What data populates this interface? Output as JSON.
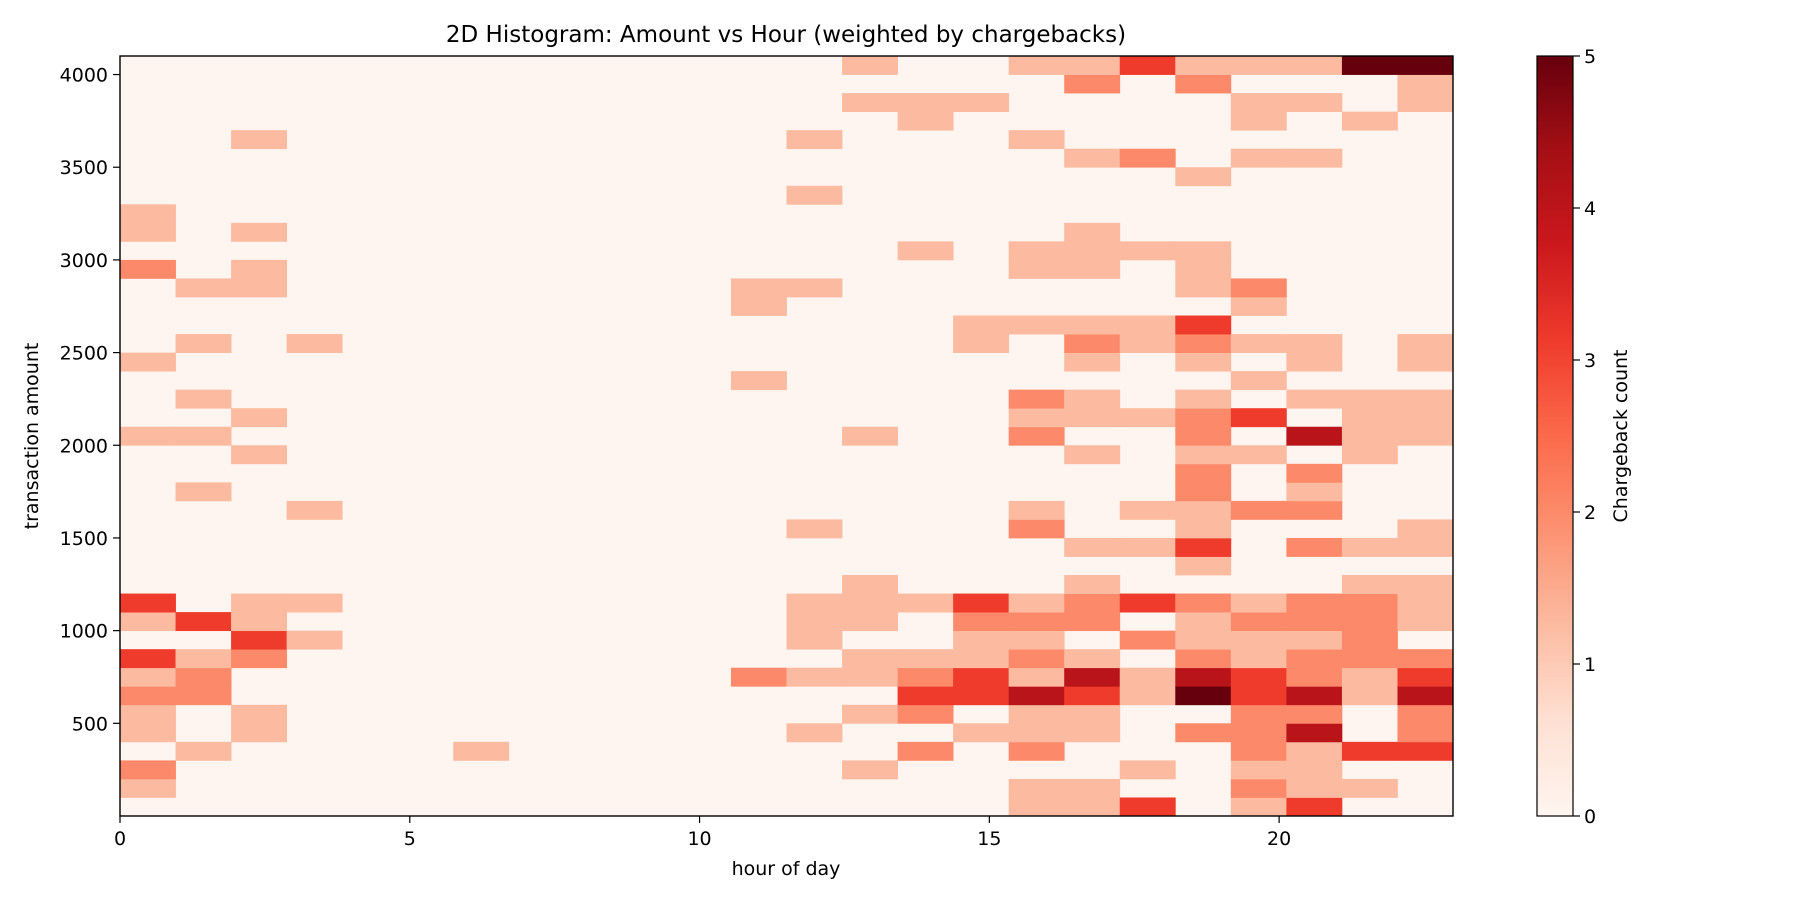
{
  "chart_data": {
    "type": "heatmap",
    "title": "2D Histogram: Amount vs Hour (weighted by chargebacks)",
    "xlabel": "hour of day",
    "ylabel": "transaction amount",
    "colorbar_label": "Chargeback count",
    "colormap": "Reds",
    "value_range": [
      0,
      5
    ],
    "x_range": [
      0,
      23
    ],
    "y_range": [
      0,
      4100
    ],
    "n_x_bins": 24,
    "n_y_bins": 41,
    "x_ticks": [
      0,
      5,
      10,
      15,
      20
    ],
    "y_ticks": [
      500,
      1000,
      1500,
      2000,
      2500,
      3000,
      3500,
      4000
    ],
    "colorbar_ticks": [
      0,
      1,
      2,
      3,
      4,
      5
    ],
    "grid": false,
    "cells": [
      [
        0,
        1,
        1
      ],
      [
        0,
        2,
        2
      ],
      [
        0,
        4,
        1
      ],
      [
        0,
        5,
        1
      ],
      [
        0,
        6,
        2
      ],
      [
        0,
        7,
        1
      ],
      [
        0,
        8,
        3
      ],
      [
        0,
        10,
        1
      ],
      [
        0,
        11,
        3
      ],
      [
        0,
        20,
        1
      ],
      [
        0,
        24,
        1
      ],
      [
        0,
        29,
        2
      ],
      [
        0,
        31,
        1
      ],
      [
        0,
        32,
        1
      ],
      [
        1,
        3,
        1
      ],
      [
        1,
        6,
        2
      ],
      [
        1,
        7,
        2
      ],
      [
        1,
        8,
        1
      ],
      [
        1,
        10,
        3
      ],
      [
        1,
        17,
        1
      ],
      [
        1,
        20,
        1
      ],
      [
        1,
        22,
        1
      ],
      [
        1,
        25,
        1
      ],
      [
        1,
        28,
        1
      ],
      [
        2,
        4,
        1
      ],
      [
        2,
        5,
        1
      ],
      [
        2,
        8,
        2
      ],
      [
        2,
        9,
        3
      ],
      [
        2,
        10,
        1
      ],
      [
        2,
        11,
        1
      ],
      [
        2,
        19,
        1
      ],
      [
        2,
        21,
        1
      ],
      [
        2,
        28,
        1
      ],
      [
        2,
        29,
        1
      ],
      [
        2,
        31,
        1
      ],
      [
        2,
        36,
        1
      ],
      [
        3,
        9,
        1
      ],
      [
        3,
        11,
        1
      ],
      [
        3,
        16,
        1
      ],
      [
        3,
        25,
        1
      ],
      [
        6,
        3,
        1
      ],
      [
        11,
        7,
        2
      ],
      [
        11,
        23,
        1
      ],
      [
        11,
        27,
        1
      ],
      [
        11,
        28,
        1
      ],
      [
        12,
        4,
        1
      ],
      [
        12,
        7,
        1
      ],
      [
        12,
        9,
        1
      ],
      [
        12,
        10,
        1
      ],
      [
        12,
        11,
        1
      ],
      [
        12,
        15,
        1
      ],
      [
        12,
        28,
        1
      ],
      [
        12,
        33,
        1
      ],
      [
        12,
        36,
        1
      ],
      [
        13,
        2,
        1
      ],
      [
        13,
        5,
        1
      ],
      [
        13,
        7,
        1
      ],
      [
        13,
        8,
        1
      ],
      [
        13,
        10,
        1
      ],
      [
        13,
        11,
        1
      ],
      [
        13,
        12,
        1
      ],
      [
        13,
        20,
        1
      ],
      [
        13,
        40,
        1
      ],
      [
        13,
        38,
        1
      ],
      [
        14,
        3,
        2
      ],
      [
        14,
        5,
        2
      ],
      [
        14,
        6,
        3
      ],
      [
        14,
        7,
        2
      ],
      [
        14,
        8,
        1
      ],
      [
        14,
        11,
        1
      ],
      [
        14,
        30,
        1
      ],
      [
        14,
        37,
        1
      ],
      [
        14,
        38,
        1
      ],
      [
        15,
        4,
        1
      ],
      [
        15,
        6,
        3
      ],
      [
        15,
        7,
        3
      ],
      [
        15,
        8,
        1
      ],
      [
        15,
        9,
        1
      ],
      [
        15,
        10,
        2
      ],
      [
        15,
        11,
        3
      ],
      [
        15,
        26,
        1
      ],
      [
        15,
        25,
        1
      ],
      [
        15,
        38,
        1
      ],
      [
        16,
        0,
        1
      ],
      [
        16,
        1,
        1
      ],
      [
        16,
        3,
        2
      ],
      [
        16,
        4,
        1
      ],
      [
        16,
        5,
        1
      ],
      [
        16,
        6,
        4
      ],
      [
        16,
        7,
        1
      ],
      [
        16,
        8,
        2
      ],
      [
        16,
        9,
        1
      ],
      [
        16,
        10,
        2
      ],
      [
        16,
        11,
        1
      ],
      [
        16,
        15,
        2
      ],
      [
        16,
        16,
        1
      ],
      [
        16,
        20,
        2
      ],
      [
        16,
        21,
        1
      ],
      [
        16,
        22,
        2
      ],
      [
        16,
        26,
        1
      ],
      [
        16,
        29,
        1
      ],
      [
        16,
        30,
        1
      ],
      [
        16,
        36,
        1
      ],
      [
        16,
        40,
        1
      ],
      [
        17,
        0,
        1
      ],
      [
        17,
        1,
        1
      ],
      [
        17,
        4,
        1
      ],
      [
        17,
        5,
        1
      ],
      [
        17,
        6,
        3
      ],
      [
        17,
        7,
        4
      ],
      [
        17,
        8,
        1
      ],
      [
        17,
        10,
        2
      ],
      [
        17,
        11,
        2
      ],
      [
        17,
        12,
        1
      ],
      [
        17,
        14,
        1
      ],
      [
        17,
        19,
        1
      ],
      [
        17,
        21,
        1
      ],
      [
        17,
        22,
        1
      ],
      [
        17,
        24,
        1
      ],
      [
        17,
        25,
        2
      ],
      [
        17,
        26,
        1
      ],
      [
        17,
        29,
        1
      ],
      [
        17,
        30,
        1
      ],
      [
        17,
        31,
        1
      ],
      [
        17,
        35,
        1
      ],
      [
        17,
        39,
        2
      ],
      [
        17,
        40,
        1
      ],
      [
        18,
        0,
        3
      ],
      [
        18,
        2,
        1
      ],
      [
        18,
        6,
        1
      ],
      [
        18,
        7,
        1
      ],
      [
        18,
        9,
        2
      ],
      [
        18,
        11,
        3
      ],
      [
        18,
        14,
        1
      ],
      [
        18,
        16,
        1
      ],
      [
        18,
        21,
        1
      ],
      [
        18,
        25,
        1
      ],
      [
        18,
        26,
        1
      ],
      [
        18,
        30,
        1
      ],
      [
        18,
        35,
        2
      ],
      [
        18,
        40,
        3
      ],
      [
        19,
        4,
        2
      ],
      [
        19,
        6,
        5
      ],
      [
        19,
        7,
        4
      ],
      [
        19,
        8,
        2
      ],
      [
        19,
        9,
        1
      ],
      [
        19,
        10,
        1
      ],
      [
        19,
        11,
        2
      ],
      [
        19,
        13,
        1
      ],
      [
        19,
        14,
        3
      ],
      [
        19,
        15,
        1
      ],
      [
        19,
        16,
        1
      ],
      [
        19,
        17,
        2
      ],
      [
        19,
        18,
        2
      ],
      [
        19,
        19,
        1
      ],
      [
        19,
        20,
        2
      ],
      [
        19,
        21,
        2
      ],
      [
        19,
        22,
        1
      ],
      [
        19,
        24,
        1
      ],
      [
        19,
        25,
        2
      ],
      [
        19,
        26,
        3
      ],
      [
        19,
        28,
        1
      ],
      [
        19,
        29,
        1
      ],
      [
        19,
        30,
        1
      ],
      [
        19,
        34,
        1
      ],
      [
        19,
        39,
        2
      ],
      [
        19,
        40,
        1
      ],
      [
        20,
        0,
        1
      ],
      [
        20,
        1,
        2
      ],
      [
        20,
        2,
        1
      ],
      [
        20,
        3,
        2
      ],
      [
        20,
        4,
        2
      ],
      [
        20,
        5,
        2
      ],
      [
        20,
        6,
        3
      ],
      [
        20,
        7,
        3
      ],
      [
        20,
        8,
        1
      ],
      [
        20,
        9,
        1
      ],
      [
        20,
        10,
        2
      ],
      [
        20,
        11,
        1
      ],
      [
        20,
        16,
        2
      ],
      [
        20,
        19,
        1
      ],
      [
        20,
        21,
        3
      ],
      [
        20,
        23,
        1
      ],
      [
        20,
        25,
        1
      ],
      [
        20,
        27,
        1
      ],
      [
        20,
        28,
        2
      ],
      [
        20,
        35,
        1
      ],
      [
        20,
        37,
        1
      ],
      [
        20,
        38,
        1
      ],
      [
        20,
        40,
        1
      ],
      [
        21,
        0,
        3
      ],
      [
        21,
        1,
        1
      ],
      [
        21,
        2,
        1
      ],
      [
        21,
        3,
        1
      ],
      [
        21,
        4,
        4
      ],
      [
        21,
        5,
        2
      ],
      [
        21,
        6,
        4
      ],
      [
        21,
        7,
        2
      ],
      [
        21,
        8,
        2
      ],
      [
        21,
        9,
        1
      ],
      [
        21,
        10,
        2
      ],
      [
        21,
        11,
        2
      ],
      [
        21,
        14,
        2
      ],
      [
        21,
        16,
        2
      ],
      [
        21,
        17,
        1
      ],
      [
        21,
        18,
        2
      ],
      [
        21,
        20,
        4
      ],
      [
        21,
        22,
        1
      ],
      [
        21,
        24,
        1
      ],
      [
        21,
        25,
        1
      ],
      [
        21,
        35,
        1
      ],
      [
        21,
        38,
        1
      ],
      [
        21,
        40,
        1
      ],
      [
        22,
        1,
        1
      ],
      [
        22,
        3,
        3
      ],
      [
        22,
        6,
        1
      ],
      [
        22,
        7,
        1
      ],
      [
        22,
        8,
        2
      ],
      [
        22,
        9,
        2
      ],
      [
        22,
        10,
        2
      ],
      [
        22,
        11,
        2
      ],
      [
        22,
        12,
        1
      ],
      [
        22,
        14,
        1
      ],
      [
        22,
        19,
        1
      ],
      [
        22,
        20,
        1
      ],
      [
        22,
        21,
        1
      ],
      [
        22,
        22,
        1
      ],
      [
        22,
        37,
        1
      ],
      [
        22,
        40,
        5
      ],
      [
        23,
        3,
        3
      ],
      [
        23,
        4,
        2
      ],
      [
        23,
        5,
        2
      ],
      [
        23,
        6,
        4
      ],
      [
        23,
        7,
        3
      ],
      [
        23,
        8,
        2
      ],
      [
        23,
        10,
        1
      ],
      [
        23,
        11,
        1
      ],
      [
        23,
        12,
        1
      ],
      [
        23,
        14,
        1
      ],
      [
        23,
        15,
        1
      ],
      [
        23,
        20,
        1
      ],
      [
        23,
        21,
        1
      ],
      [
        23,
        22,
        1
      ],
      [
        23,
        24,
        1
      ],
      [
        23,
        25,
        1
      ],
      [
        23,
        38,
        1
      ],
      [
        23,
        39,
        1
      ],
      [
        23,
        40,
        5
      ]
    ]
  }
}
